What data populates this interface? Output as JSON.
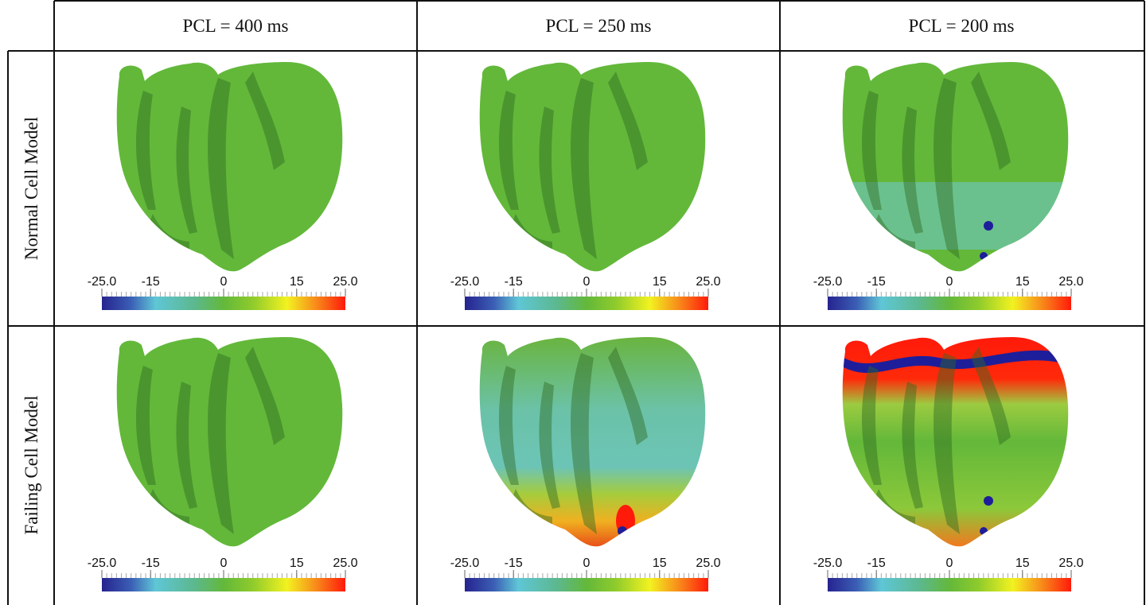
{
  "table": {
    "column_headers": [
      "PCL = 400 ms",
      "PCL = 250 ms",
      "PCL = 200 ms"
    ],
    "row_headers": [
      "Normal Cell Model",
      "Failing Cell Model"
    ]
  },
  "colorbar": {
    "tick_labels": [
      "-25.0",
      "-15",
      "0",
      "15",
      "25.0"
    ]
  }
}
